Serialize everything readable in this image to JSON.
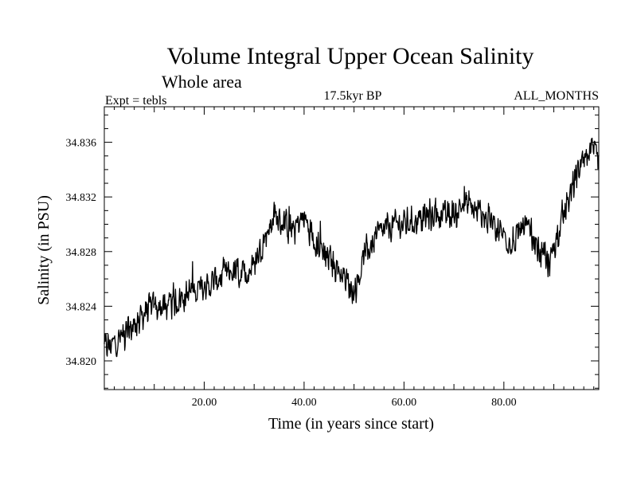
{
  "chart_data": {
    "type": "line",
    "title": "Volume Integral Upper Ocean Salinity",
    "subtitle": "Whole area",
    "left_label": "Expt = tebls",
    "center_label": "17.5kyr BP",
    "right_label": "ALL_MONTHS",
    "xlabel": "Time (in years since start)",
    "ylabel": "Salinity (in PSU)",
    "xlim": [
      0,
      99
    ],
    "ylim": [
      34.8179,
      34.8386
    ],
    "x_ticks": [
      {
        "value": 20,
        "label": "20.00"
      },
      {
        "value": 40,
        "label": "40.00"
      },
      {
        "value": 60,
        "label": "60.00"
      },
      {
        "value": 80,
        "label": "80.00"
      }
    ],
    "y_ticks": [
      {
        "value": 34.82,
        "label": "34.820"
      },
      {
        "value": 34.824,
        "label": "34.824"
      },
      {
        "value": 34.828,
        "label": "34.828"
      },
      {
        "value": 34.832,
        "label": "34.832"
      },
      {
        "value": 34.836,
        "label": "34.836"
      }
    ],
    "series": [
      {
        "name": "salinity",
        "color": "#000000",
        "points_per_year": 12,
        "noise_amplitude": 0.0013,
        "trend": [
          [
            0,
            34.821
          ],
          [
            2,
            34.8213
          ],
          [
            5,
            34.8222
          ],
          [
            8,
            34.8235
          ],
          [
            10,
            34.824
          ],
          [
            12,
            34.8238
          ],
          [
            15,
            34.8245
          ],
          [
            18,
            34.8252
          ],
          [
            20,
            34.8252
          ],
          [
            22,
            34.8258
          ],
          [
            25,
            34.8265
          ],
          [
            28,
            34.8263
          ],
          [
            30,
            34.827
          ],
          [
            32,
            34.829
          ],
          [
            34,
            34.8305
          ],
          [
            36,
            34.83
          ],
          [
            38,
            34.8298
          ],
          [
            40,
            34.8305
          ],
          [
            42,
            34.829
          ],
          [
            44,
            34.828
          ],
          [
            46,
            34.827
          ],
          [
            48,
            34.8262
          ],
          [
            50,
            34.825
          ],
          [
            52,
            34.8275
          ],
          [
            54,
            34.829
          ],
          [
            56,
            34.8295
          ],
          [
            58,
            34.83
          ],
          [
            60,
            34.83
          ],
          [
            62,
            34.8302
          ],
          [
            64,
            34.8305
          ],
          [
            66,
            34.8308
          ],
          [
            68,
            34.8305
          ],
          [
            70,
            34.8308
          ],
          [
            72,
            34.8315
          ],
          [
            74,
            34.831
          ],
          [
            76,
            34.8305
          ],
          [
            78,
            34.83
          ],
          [
            80,
            34.8292
          ],
          [
            82,
            34.8285
          ],
          [
            84,
            34.83
          ],
          [
            86,
            34.8288
          ],
          [
            88,
            34.8275
          ],
          [
            89,
            34.827
          ],
          [
            90,
            34.8285
          ],
          [
            92,
            34.8305
          ],
          [
            94,
            34.833
          ],
          [
            96,
            34.8345
          ],
          [
            98,
            34.8352
          ],
          [
            99,
            34.8345
          ]
        ]
      }
    ]
  }
}
